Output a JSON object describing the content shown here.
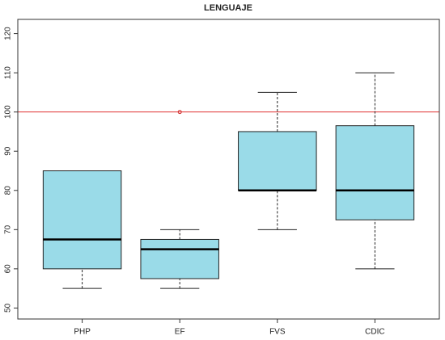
{
  "chart_data": {
    "type": "boxplot",
    "title": "LENGUAJE",
    "categories": [
      "PHP",
      "EF",
      "FVS",
      "CDIC"
    ],
    "series": [
      {
        "name": "PHP",
        "min": 55,
        "q1": 60,
        "median": 67.5,
        "q3": 85,
        "max": 85,
        "outliers": []
      },
      {
        "name": "EF",
        "min": 55,
        "q1": 57.5,
        "median": 65,
        "q3": 67.5,
        "max": 70,
        "outliers": [
          100
        ]
      },
      {
        "name": "FVS",
        "min": 70,
        "q1": 80,
        "median": 80,
        "q3": 95,
        "max": 105,
        "outliers": []
      },
      {
        "name": "CDIC",
        "min": 60,
        "q1": 72.5,
        "median": 80,
        "q3": 96.5,
        "max": 110,
        "outliers": []
      }
    ],
    "color": "#9adbe8",
    "outlier_color": "#d03030",
    "hline": 100,
    "hline_color": "#e03030",
    "ylim": [
      47.2,
      122.8
    ],
    "yticks": [
      50,
      60,
      70,
      80,
      90,
      100,
      110,
      120
    ]
  }
}
